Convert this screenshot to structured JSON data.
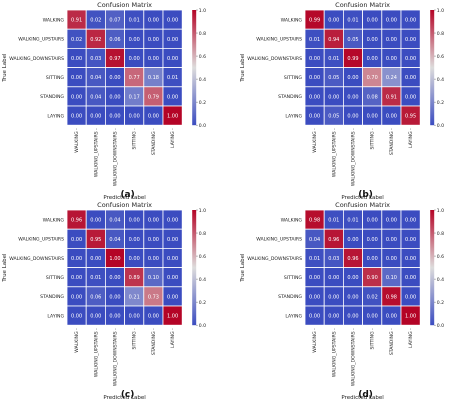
{
  "figure": {
    "panel_captions": [
      "(a)",
      "(b)",
      "(c)",
      "(d)"
    ]
  },
  "colors": {
    "cmap_low": "#3b4cc0",
    "cmap_mid": "#dddcdc",
    "cmap_high": "#b40426",
    "cell_border": "#ffffff"
  },
  "chart_data": [
    {
      "type": "heatmap",
      "caption": "(a)",
      "title": "Confusion Matrix",
      "xlabel": "Predicted Label",
      "ylabel": "True Label",
      "labels": [
        "WALKING",
        "WALKING_UPSTAIRS",
        "WALKING_DOWNSTAIRS",
        "SITTING",
        "STANDING",
        "LAYING"
      ],
      "values": [
        [
          0.91,
          0.02,
          0.07,
          0.01,
          0.0,
          0.0
        ],
        [
          0.02,
          0.92,
          0.06,
          0.0,
          0.0,
          0.0
        ],
        [
          0.0,
          0.03,
          0.97,
          0.0,
          0.0,
          0.0
        ],
        [
          0.0,
          0.04,
          0.0,
          0.77,
          0.18,
          0.01
        ],
        [
          0.0,
          0.04,
          0.0,
          0.17,
          0.79,
          0.0
        ],
        [
          0.0,
          0.0,
          0.0,
          0.0,
          0.0,
          1.0
        ]
      ],
      "colorbar": {
        "range": [
          0,
          1
        ],
        "ticks": [
          "0.0",
          "0.2",
          "0.4",
          "0.6",
          "0.8",
          "1.0"
        ]
      }
    },
    {
      "type": "heatmap",
      "caption": "(b)",
      "title": "Confusion Matrix",
      "xlabel": "Predicted Label",
      "ylabel": "True Label",
      "labels": [
        "WALKING",
        "WALKING_UPSTAIRS",
        "WALKING_DOWNSTAIRS",
        "SITTING",
        "STANDING",
        "LAYING"
      ],
      "values": [
        [
          0.99,
          0.0,
          0.01,
          0.0,
          0.0,
          0.0
        ],
        [
          0.01,
          0.94,
          0.05,
          0.0,
          0.0,
          0.0
        ],
        [
          0.0,
          0.01,
          0.99,
          0.0,
          0.0,
          0.0
        ],
        [
          0.0,
          0.05,
          0.0,
          0.7,
          0.24,
          0.0
        ],
        [
          0.0,
          0.0,
          0.0,
          0.08,
          0.91,
          0.0
        ],
        [
          0.0,
          0.05,
          0.0,
          0.0,
          0.0,
          0.95
        ]
      ],
      "colorbar": {
        "range": [
          0,
          1
        ],
        "ticks": [
          "0.0",
          "0.2",
          "0.4",
          "0.6",
          "0.8",
          "1.0"
        ]
      }
    },
    {
      "type": "heatmap",
      "caption": "(c)",
      "title": "Confusion Matrix",
      "xlabel": "Predicted Label",
      "ylabel": "True Label",
      "labels": [
        "WALKING",
        "WALKING_UPSTAIRS",
        "WALKING_DOWNSTAIRS",
        "SITTING",
        "STANDING",
        "LAYING"
      ],
      "values": [
        [
          0.96,
          0.0,
          0.04,
          0.0,
          0.0,
          0.0
        ],
        [
          0.0,
          0.95,
          0.04,
          0.0,
          0.0,
          0.0
        ],
        [
          0.0,
          0.0,
          1.0,
          0.0,
          0.0,
          0.0
        ],
        [
          0.0,
          0.01,
          0.0,
          0.89,
          0.1,
          0.0
        ],
        [
          0.0,
          0.06,
          0.0,
          0.21,
          0.73,
          0.0
        ],
        [
          0.0,
          0.0,
          0.0,
          0.0,
          0.0,
          1.0
        ]
      ],
      "colorbar": {
        "range": [
          0,
          1
        ],
        "ticks": [
          "0.0",
          "0.2",
          "0.4",
          "0.6",
          "0.8",
          "1.0"
        ]
      }
    },
    {
      "type": "heatmap",
      "caption": "(d)",
      "title": "Confusion Matrix",
      "xlabel": "Predicted Label",
      "ylabel": "True Label",
      "labels": [
        "WALKING",
        "WALKING_UPSTAIRS",
        "WALKING_DOWNSTAIRS",
        "SITTING",
        "STANDING",
        "LAYING"
      ],
      "values": [
        [
          0.98,
          0.01,
          0.01,
          0.0,
          0.0,
          0.0
        ],
        [
          0.04,
          0.96,
          0.0,
          0.0,
          0.0,
          0.0
        ],
        [
          0.01,
          0.03,
          0.96,
          0.0,
          0.0,
          0.0
        ],
        [
          0.0,
          0.0,
          0.0,
          0.9,
          0.1,
          0.0
        ],
        [
          0.0,
          0.0,
          0.0,
          0.02,
          0.98,
          0.0
        ],
        [
          0.0,
          0.0,
          0.0,
          0.0,
          0.0,
          1.0
        ]
      ],
      "colorbar": {
        "range": [
          0,
          1
        ],
        "ticks": [
          "0.0",
          "0.2",
          "0.4",
          "0.6",
          "0.8",
          "1.0"
        ]
      }
    }
  ]
}
